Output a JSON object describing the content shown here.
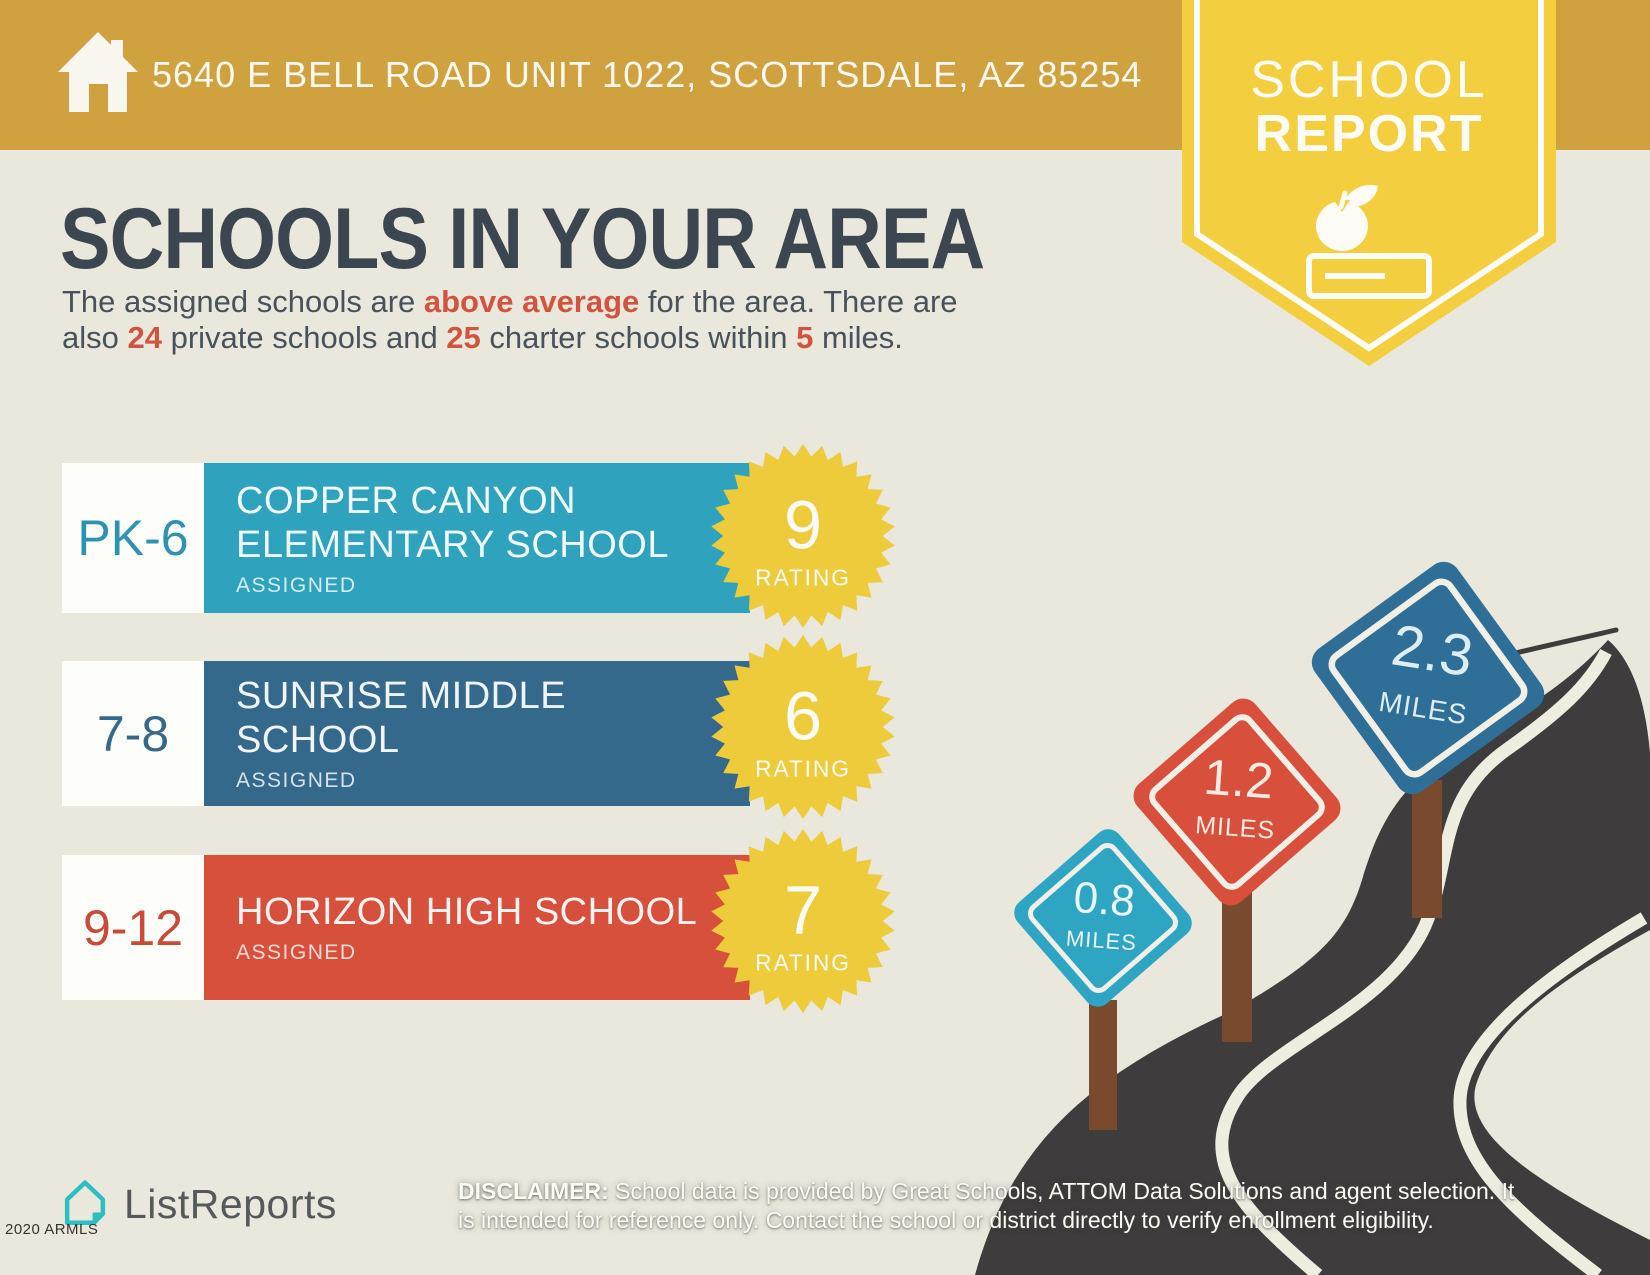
{
  "header": {
    "address": "5640 E BELL ROAD UNIT 1022, SCOTTSDALE, AZ 85254",
    "badge": {
      "line1": "SCHOOL",
      "line2": "REPORT"
    }
  },
  "main": {
    "title": "SCHOOLS IN YOUR AREA",
    "subtitle": {
      "line1": {
        "s1": "The assigned schools are ",
        "h1": "above average",
        "s2": " for the area. There are"
      },
      "line2": {
        "s1": "also ",
        "h1": "24",
        "s2": " private schools and ",
        "h2": "25",
        "s3": " charter schools within ",
        "h3": "5",
        "s4": " miles."
      }
    }
  },
  "schools": [
    {
      "grades": "PK-6",
      "name_line1": "COPPER CANYON",
      "name_line2": "ELEMENTARY SCHOOL",
      "status": "ASSIGNED",
      "rating": "9",
      "rating_label": "RATING"
    },
    {
      "grades": "7-8",
      "name_line1": "SUNRISE MIDDLE",
      "name_line2": "SCHOOL",
      "status": "ASSIGNED",
      "rating": "6",
      "rating_label": "RATING"
    },
    {
      "grades": "9-12",
      "name_line1": "HORIZON HIGH SCHOOL",
      "name_line2": "",
      "status": "ASSIGNED",
      "rating": "7",
      "rating_label": "RATING"
    }
  ],
  "signs": [
    {
      "value": "0.8",
      "unit": "MILES"
    },
    {
      "value": "1.2",
      "unit": "MILES"
    },
    {
      "value": "2.3",
      "unit": "MILES"
    }
  ],
  "footer": {
    "brand": "ListReports",
    "disclaimer_label": "DISCLAIMER:",
    "disclaimer_text": " School data is provided by Great Schools, ATTOM Data Solutions and agent selection. It is intended for reference only. Contact the school or district directly to verify enrollment eligibility.",
    "watermark": "2020 ARMLS"
  },
  "colors": {
    "banner_gold": "#D0A23F",
    "badge_yellow": "#F3CE3E",
    "star_yellow": "#EECB3A",
    "teal": "#2FA2BE",
    "steel_blue": "#35698C",
    "red": "#D7503C",
    "road_asphalt": "#3E3C3C",
    "road_line": "#EFECE0",
    "post_brown": "#7A4A2E",
    "background": "#EAE7DC",
    "heading_text": "#3B4650",
    "highlight_red": "#D15440",
    "brand_teal": "#2BBFC2"
  }
}
